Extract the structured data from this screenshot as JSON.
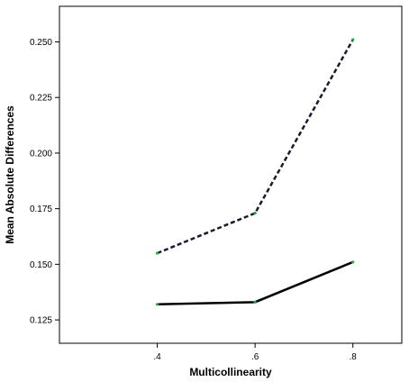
{
  "chart_data": {
    "type": "line",
    "title": "",
    "xlabel": "Multicollinearity",
    "ylabel": "Mean Absolute Differences",
    "x": [
      0.4,
      0.6,
      0.8
    ],
    "x_tick_labels": [
      ".4",
      ".6",
      ".8"
    ],
    "xlim": [
      0.2,
      0.9
    ],
    "ylim": [
      0.1145,
      0.266
    ],
    "y_ticks": [
      0.125,
      0.15,
      0.175,
      0.2,
      0.225,
      0.25
    ],
    "y_tick_labels": [
      "0.125",
      "0.150",
      "0.175",
      "0.200",
      "0.225",
      "0.250"
    ],
    "grid": false,
    "legend": "none",
    "series": [
      {
        "values": [
          0.155,
          0.173,
          0.251
        ],
        "line_style": "dashed",
        "color": "#1a1a2e"
      },
      {
        "values": [
          0.132,
          0.133,
          0.151
        ],
        "line_style": "solid",
        "color": "#000000"
      }
    ],
    "marker_color": "#22aa44"
  }
}
